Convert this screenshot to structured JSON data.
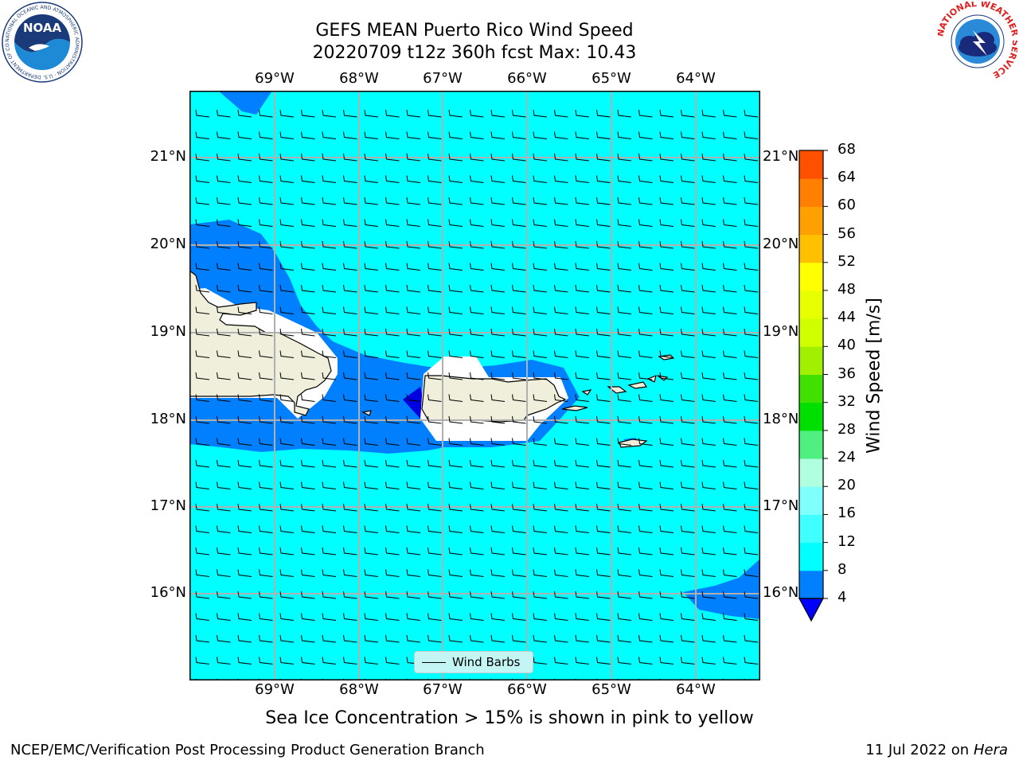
{
  "title": {
    "line1": "GEFS MEAN Puerto Rico Wind Speed",
    "line2": "20220709 t12z 360h fcst   Max: 10.43"
  },
  "map": {
    "lon_labels": [
      "69°W",
      "68°W",
      "67°W",
      "66°W",
      "65°W",
      "64°W"
    ],
    "lon_values": [
      -69,
      -68,
      -67,
      -66,
      -65,
      -64
    ],
    "lat_labels": [
      "21°N",
      "20°N",
      "19°N",
      "18°N",
      "17°N",
      "16°N"
    ],
    "lat_values": [
      21,
      20,
      19,
      18,
      17,
      16
    ],
    "extent": {
      "lon_min": -70.0,
      "lon_max": -63.23,
      "lat_min": 15.02,
      "lat_max": 21.75
    },
    "ocean_color": "#00ffff",
    "low_wind_color": "#0080ff",
    "calm_color": "#0000e0",
    "land_color": "#efefdc",
    "legend_label": "Wind Barbs"
  },
  "colorbar": {
    "title": "Wind Speed [m/s]",
    "levels": [
      4,
      8,
      12,
      16,
      20,
      24,
      28,
      32,
      36,
      40,
      44,
      48,
      52,
      56,
      60,
      64,
      68
    ],
    "labels": [
      "68",
      "64",
      "60",
      "56",
      "52",
      "48",
      "44",
      "40",
      "36",
      "32",
      "28",
      "24",
      "20",
      "16",
      "12",
      "8",
      "4"
    ],
    "colors": [
      "#0080ff",
      "#00ffff",
      "#40ffff",
      "#80ffff",
      "#b0ffe0",
      "#50f080",
      "#00e000",
      "#40e000",
      "#a0f000",
      "#d0ff00",
      "#e8ff00",
      "#ffff00",
      "#ffc000",
      "#ffa000",
      "#ff8000",
      "#ff5000",
      "#ff2000",
      "#ff0000"
    ],
    "extend_color": "#0000ff"
  },
  "subtitle": "Sea Ice Concentration > 15% is shown in pink to yellow",
  "footer": {
    "left": "NCEP/EMC/Verification Post Processing Product Generation Branch",
    "right_date": "11 Jul 2022 on ",
    "right_host": "Hera"
  },
  "logos": {
    "noaa": "NOAA",
    "noaa_ring": "NATIONAL OCEANIC AND ATMOSPHERIC ADMINISTRATION · U.S. DEPARTMENT OF COMMERCE",
    "nws_ring": "NATIONAL WEATHER SERVICE"
  }
}
